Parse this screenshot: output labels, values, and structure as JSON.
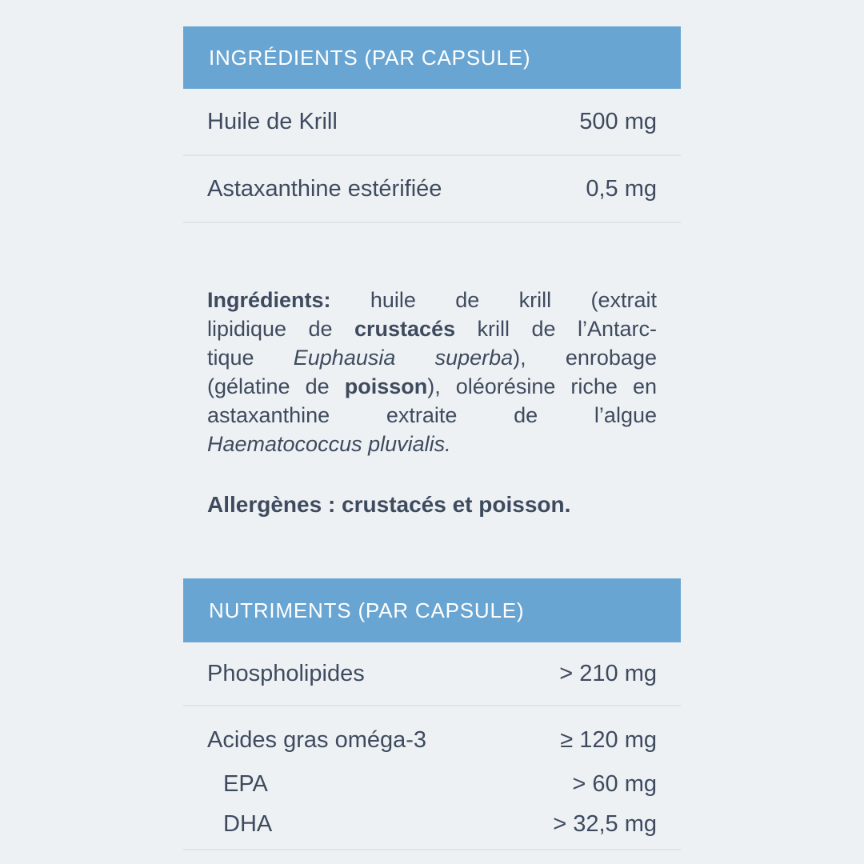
{
  "label": {
    "colors": {
      "background": "#eef1f4",
      "accent": "#69a5d2",
      "header_text": "#ffffff",
      "text": "#3e4b5e",
      "divider": "#e0e4e9"
    },
    "ingredients_table": {
      "header": "INGRÉDIENTS (PAR CAPSULE)",
      "rows": [
        {
          "label": "Huile de Krill",
          "value": "500 mg"
        },
        {
          "label": "Astaxanthine estérifiée",
          "value": "0,5 mg"
        }
      ]
    },
    "ingredients_paragraph": {
      "lines": [
        {
          "segments": [
            {
              "text": "Ingrédients:",
              "style": "bold"
            },
            {
              "text": " huile de krill (extrait",
              "style": "normal"
            }
          ]
        },
        {
          "segments": [
            {
              "text": "lipidique de ",
              "style": "normal"
            },
            {
              "text": "crustacés",
              "style": "bold"
            },
            {
              "text": " krill de l’Antarc-",
              "style": "normal"
            }
          ]
        },
        {
          "segments": [
            {
              "text": "tique ",
              "style": "normal"
            },
            {
              "text": "Euphausia superba",
              "style": "italic"
            },
            {
              "text": "), enrobage",
              "style": "normal"
            }
          ]
        },
        {
          "segments": [
            {
              "text": "(gélatine de ",
              "style": "normal"
            },
            {
              "text": "poisson",
              "style": "bold"
            },
            {
              "text": "), oléorésine riche en",
              "style": "normal"
            }
          ]
        },
        {
          "segments": [
            {
              "text": "astaxanthine extraite de l’algue",
              "style": "normal"
            }
          ]
        },
        {
          "segments": [
            {
              "text": "Haematococcus pluvialis.",
              "style": "italic"
            }
          ]
        }
      ]
    },
    "allergens_line": "Allergènes : crustacés et poisson.",
    "nutrients_table": {
      "header": "NUTRIMENTS (PAR CAPSULE)",
      "rows": [
        {
          "label": "Phospholipides",
          "value": "> 210 mg"
        },
        {
          "label": "Acides gras oméga-3",
          "value": "≥ 120 mg"
        },
        {
          "label": "EPA",
          "value": "> 60 mg"
        },
        {
          "label": "DHA",
          "value": "> 32,5 mg"
        }
      ]
    }
  }
}
